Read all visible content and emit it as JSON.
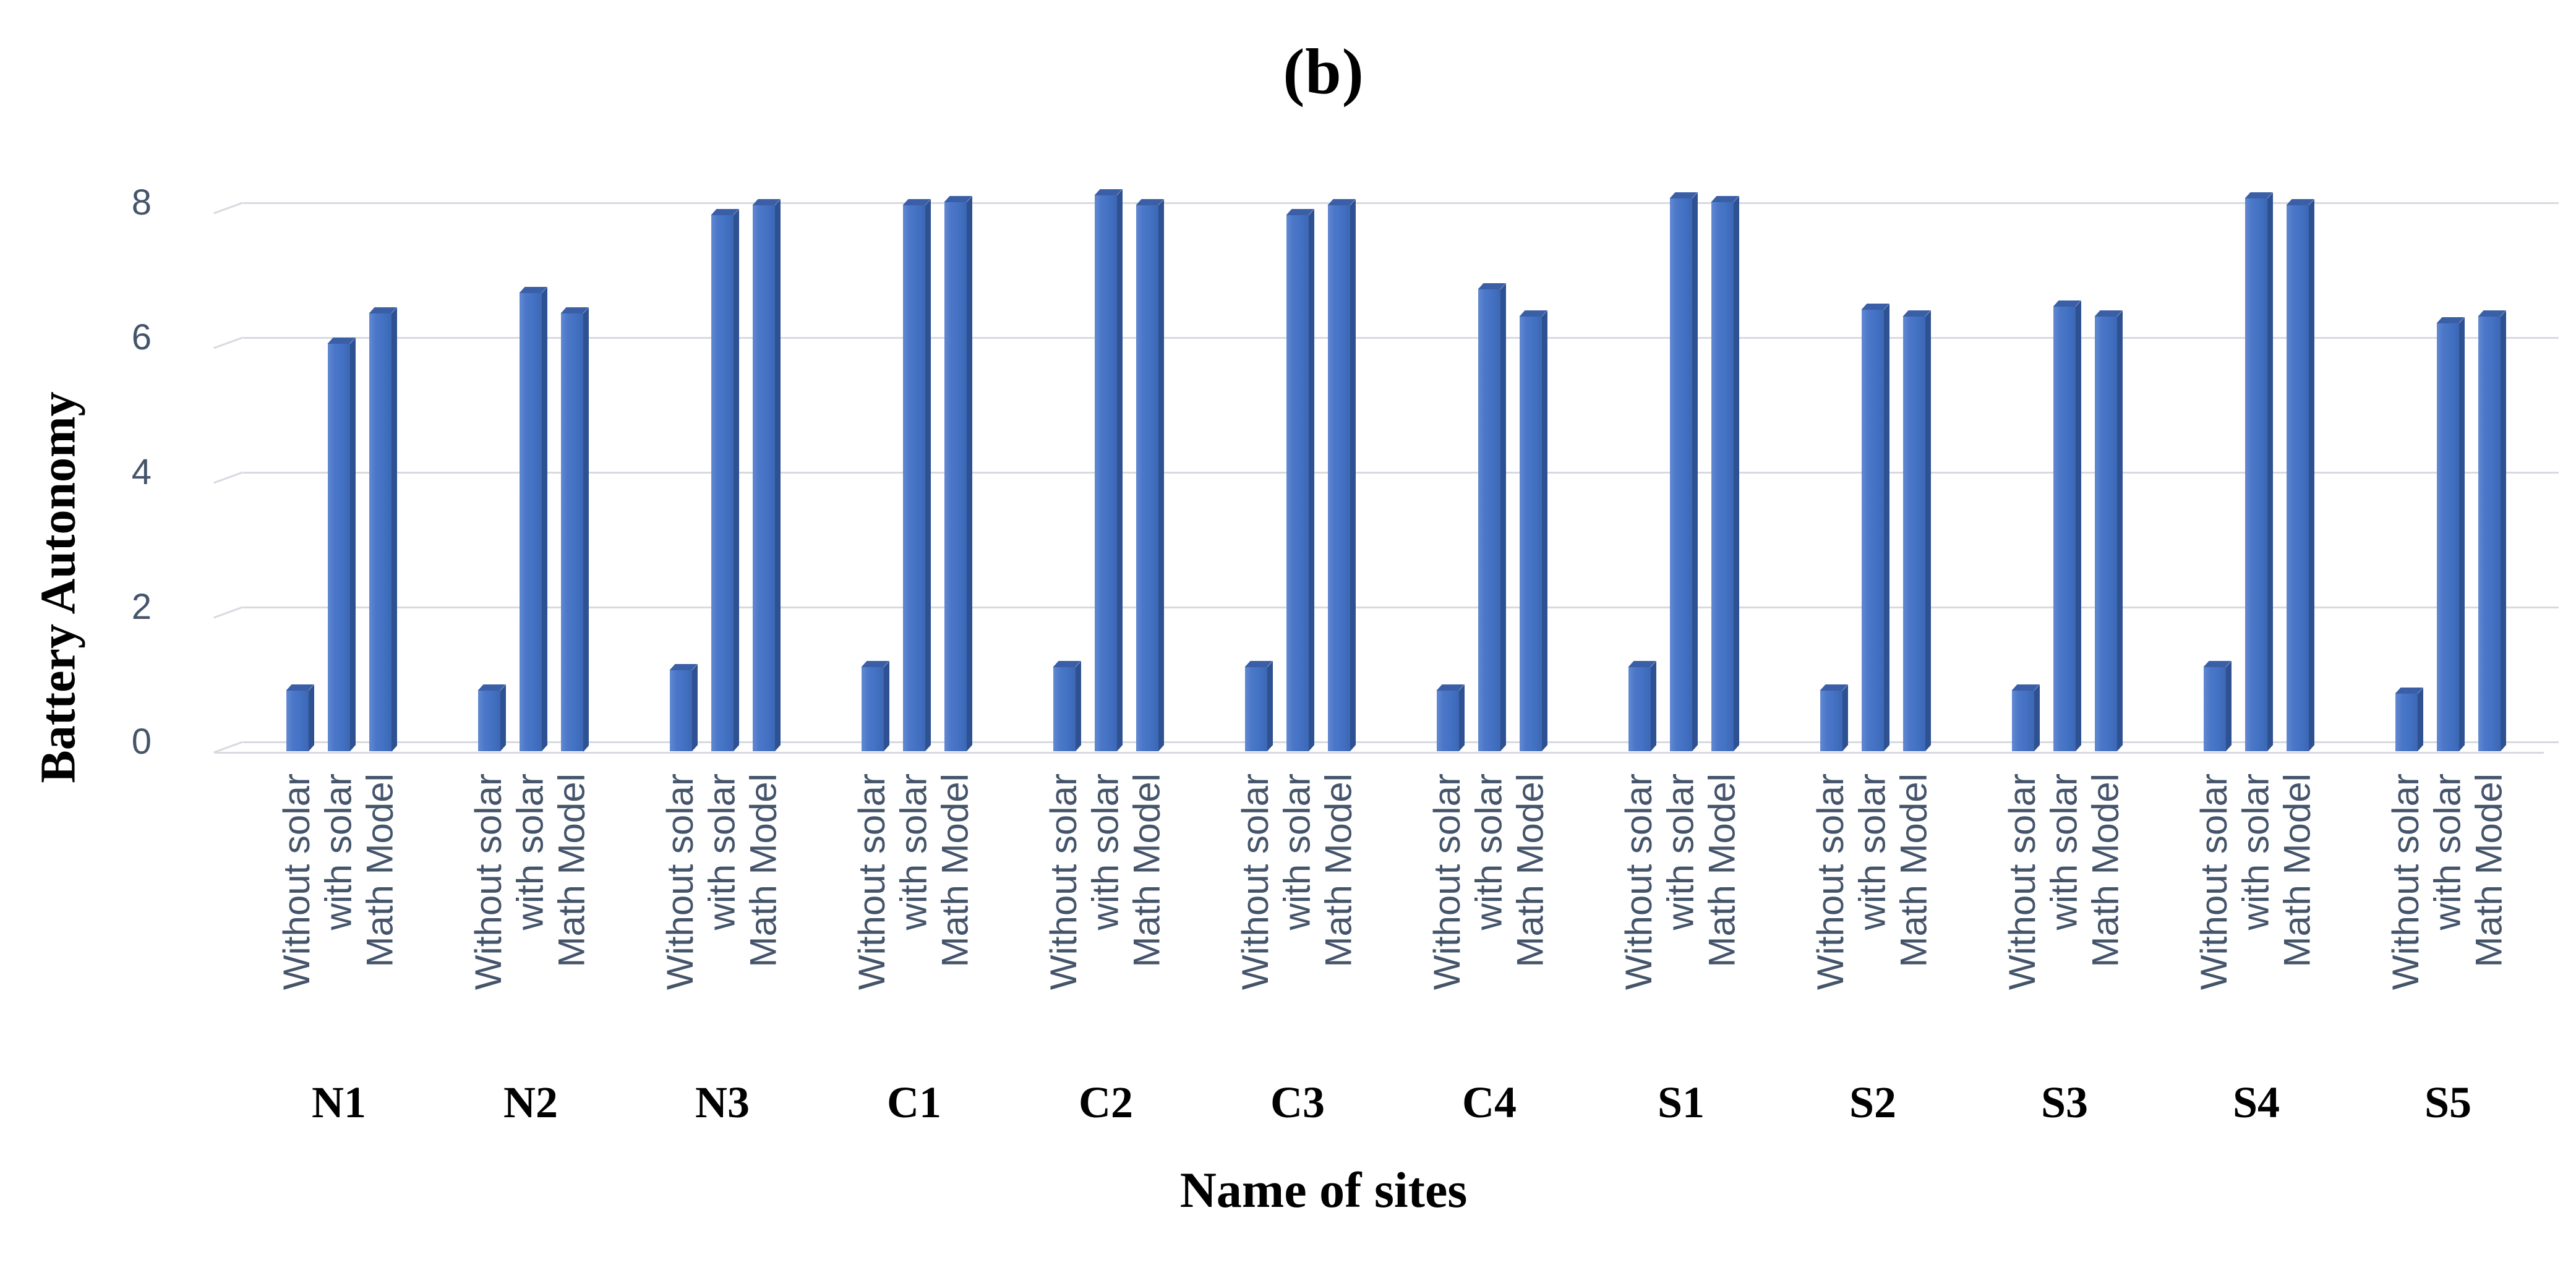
{
  "title": "(b)",
  "y_axis": {
    "title": "Battery Autonomy",
    "tick_labels": [
      "0",
      "2",
      "4",
      "6",
      "8"
    ]
  },
  "x_axis": {
    "title": "Name of sites"
  },
  "series_labels": [
    "Without solar",
    "with solar",
    "Math Model"
  ],
  "colors": {
    "bar_front": "#4472C4",
    "bar_side": "#2E5191",
    "bar_top": "#3A5FA6",
    "axis_text": "#44546A",
    "gridline": "#D8DAE2",
    "title_text": "#000000"
  },
  "chart_data": {
    "type": "bar",
    "style": "3d-column",
    "title": "(b)",
    "xlabel": "Name of sites",
    "ylabel": "Battery Autonomy",
    "ylim": [
      0,
      8.5
    ],
    "ytick_step": 2,
    "grid": true,
    "legend": false,
    "categories": [
      "N1",
      "N2",
      "N3",
      "C1",
      "C2",
      "C3",
      "C4",
      "S1",
      "S2",
      "S3",
      "S4",
      "S5"
    ],
    "series": [
      {
        "name": "Without solar",
        "values": [
          0.9,
          0.9,
          1.2,
          1.25,
          1.25,
          1.25,
          0.9,
          1.25,
          0.9,
          0.9,
          1.25,
          0.85
        ]
      },
      {
        "name": "with solar",
        "values": [
          6.05,
          6.8,
          7.95,
          8.1,
          8.25,
          7.95,
          6.85,
          8.2,
          6.55,
          6.6,
          8.2,
          6.35
        ]
      },
      {
        "name": "Math Model",
        "values": [
          6.5,
          6.5,
          8.1,
          8.15,
          8.1,
          8.1,
          6.45,
          8.15,
          6.45,
          6.45,
          8.1,
          6.45
        ]
      }
    ]
  }
}
